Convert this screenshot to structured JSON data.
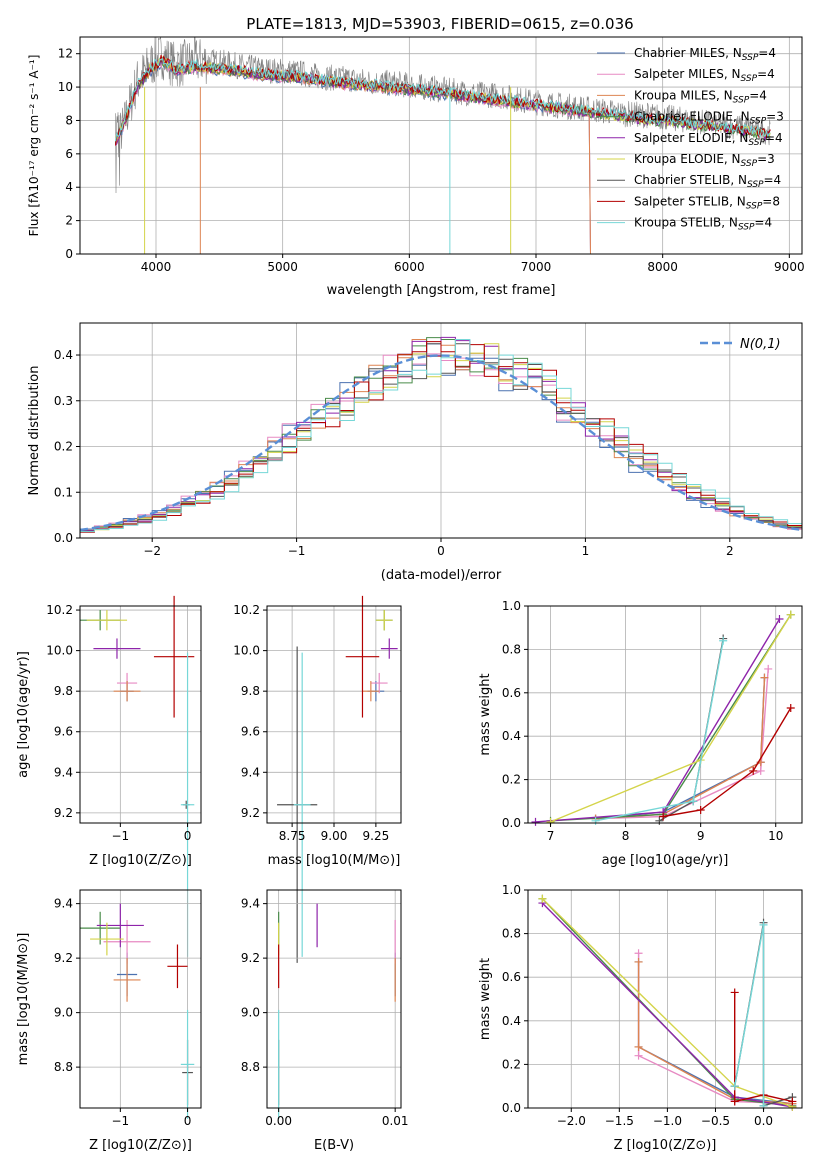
{
  "figure_title": "PLATE=1813, MJD=53903, FIBERID=0615, z=0.036",
  "series_colors": [
    "#4c72b0",
    "#e78ac3",
    "#dd8452",
    "#4a8c4a",
    "#8e24aa",
    "#d4d44a",
    "#555555",
    "#b30000",
    "#76d7d7"
  ],
  "legend_entries": [
    {
      "base": "Chabrier MILES, N",
      "sub": "SSP",
      "tail": "=4"
    },
    {
      "base": "Salpeter MILES, N",
      "sub": "SSP",
      "tail": "=4"
    },
    {
      "base": "Kroupa MILES, N",
      "sub": "SSP",
      "tail": "=4"
    },
    {
      "base": "Chabrier ELODIE, N",
      "sub": "SSP",
      "tail": "=3"
    },
    {
      "base": "Salpeter ELODIE, N",
      "sub": "SSP",
      "tail": "=4"
    },
    {
      "base": "Kroupa ELODIE, N",
      "sub": "SSP",
      "tail": "=3"
    },
    {
      "base": "Chabrier STELIB, N",
      "sub": "SSP",
      "tail": "=4"
    },
    {
      "base": "Salpeter STELIB, N",
      "sub": "SSP",
      "tail": "=8"
    },
    {
      "base": "Kroupa STELIB, N",
      "sub": "SSP",
      "tail": "=4"
    }
  ],
  "chart_data": [
    {
      "id": "spectrum",
      "type": "line",
      "xlabel": "wavelength [Angstrom, rest frame]",
      "ylabel": "Flux [fλ10⁻¹⁷ erg cm⁻² s⁻¹ A⁻¹]",
      "xlim": [
        3400,
        9100
      ],
      "ylim": [
        0,
        13
      ],
      "xticks": [
        4000,
        5000,
        6000,
        7000,
        8000,
        9000
      ],
      "yticks": [
        0,
        2,
        4,
        6,
        8,
        10,
        12
      ],
      "x": [
        3680,
        3750,
        3850,
        3950,
        4050,
        4150,
        4300,
        4500,
        4700,
        4900,
        5100,
        5300,
        5500,
        5700,
        5900,
        6100,
        6300,
        6500,
        6700,
        6900,
        7100,
        7300,
        7500,
        7700,
        7900,
        8100,
        8300,
        8500,
        8700,
        8850
      ],
      "data_y": [
        6.5,
        7.8,
        10.3,
        11.3,
        11.9,
        11.3,
        11.6,
        11.5,
        11.2,
        11.0,
        10.9,
        10.6,
        10.5,
        10.3,
        10.2,
        10.0,
        9.8,
        9.6,
        9.5,
        9.2,
        9.0,
        8.8,
        8.6,
        8.4,
        8.3,
        8.1,
        7.9,
        7.7,
        7.5,
        7.3
      ],
      "model_y": [
        6.7,
        7.9,
        10.0,
        11.0,
        11.6,
        11.0,
        11.2,
        11.1,
        10.9,
        10.7,
        10.6,
        10.4,
        10.2,
        10.1,
        9.9,
        9.8,
        9.6,
        9.4,
        9.2,
        9.0,
        8.8,
        8.6,
        8.4,
        8.2,
        8.0,
        7.9,
        7.7,
        7.5,
        7.3,
        7.1
      ]
    },
    {
      "id": "residuals",
      "type": "histogram",
      "xlabel": "(data-model)/error",
      "ylabel": "Normed distribution",
      "xlim": [
        -2.5,
        2.5
      ],
      "ylim": [
        0,
        0.47
      ],
      "xticks": [
        -2,
        -1,
        0,
        1,
        2
      ],
      "yticks": [
        0.0,
        0.1,
        0.2,
        0.3,
        0.4
      ],
      "legend": "N(0,1)",
      "bin_width": 0.1
    },
    {
      "id": "age_vs_Z",
      "type": "errorbar",
      "xlabel": "Z [log10(Z/Z⊙)]",
      "ylabel": "age [log10(age/yr)]",
      "xlim": [
        -1.6,
        0.2
      ],
      "ylim": [
        9.15,
        10.22
      ],
      "xticks": [
        -1,
        0
      ],
      "yticks": [
        9.2,
        9.4,
        9.6,
        9.8,
        10.0,
        10.2
      ],
      "points": [
        {
          "s": 0,
          "x": -0.9,
          "xerr": 0.1,
          "y": 9.8,
          "yerr": 0.05
        },
        {
          "s": 1,
          "x": -0.9,
          "xerr": 0.15,
          "y": 9.84,
          "yerr": 0.05
        },
        {
          "s": 2,
          "x": -0.9,
          "xerr": 0.2,
          "y": 9.8,
          "yerr": 0.05
        },
        {
          "s": 3,
          "x": -1.3,
          "xerr": 0.3,
          "y": 10.15,
          "yerr": 0.05
        },
        {
          "s": 4,
          "x": -1.05,
          "xerr": 0.35,
          "y": 10.01,
          "yerr": 0.05
        },
        {
          "s": 5,
          "x": -1.2,
          "xerr": 0.3,
          "y": 10.15,
          "yerr": 0.05
        },
        {
          "s": 6,
          "x": -0.02,
          "xerr": 0.05,
          "y": 9.24,
          "yerr": 0.02
        },
        {
          "s": 7,
          "x": -0.2,
          "xerr": 0.3,
          "y": 9.97,
          "yerr": 0.3
        },
        {
          "s": 8,
          "x": 0.0,
          "xerr": 0.1,
          "y": 9.24,
          "yerr": 0.75
        }
      ]
    },
    {
      "id": "age_vs_mass",
      "type": "errorbar",
      "xlabel": "mass [log10(M/M⊙)]",
      "ylabel": "",
      "xlim": [
        8.6,
        9.4
      ],
      "ylim": [
        9.15,
        10.22
      ],
      "xticks": [
        8.75,
        9.0,
        9.25
      ],
      "yticks": [
        9.2,
        9.4,
        9.6,
        9.8,
        10.0,
        10.2
      ],
      "points": [
        {
          "s": 0,
          "x": 9.25,
          "xerr": 0.05,
          "y": 9.8,
          "yerr": 0.05
        },
        {
          "s": 1,
          "x": 9.27,
          "xerr": 0.05,
          "y": 9.84,
          "yerr": 0.05
        },
        {
          "s": 2,
          "x": 9.22,
          "xerr": 0.05,
          "y": 9.8,
          "yerr": 0.05
        },
        {
          "s": 3,
          "x": 9.3,
          "xerr": 0.05,
          "y": 10.15,
          "yerr": 0.05
        },
        {
          "s": 4,
          "x": 9.33,
          "xerr": 0.05,
          "y": 10.01,
          "yerr": 0.05
        },
        {
          "s": 5,
          "x": 9.3,
          "xerr": 0.05,
          "y": 10.15,
          "yerr": 0.05
        },
        {
          "s": 6,
          "x": 8.78,
          "xerr": 0.12,
          "y": 9.24,
          "yerr": 0.78
        },
        {
          "s": 7,
          "x": 9.17,
          "xerr": 0.1,
          "y": 9.97,
          "yerr": 0.3
        },
        {
          "s": 8,
          "x": 8.81,
          "xerr": 0.05,
          "y": 9.24,
          "yerr": 0.75
        }
      ]
    },
    {
      "id": "weight_vs_age",
      "type": "line",
      "xlabel": "age [log10(age/yr)]",
      "ylabel": "mass weight",
      "xlim": [
        6.7,
        10.35
      ],
      "ylim": [
        0,
        1
      ],
      "xticks": [
        7,
        8,
        9,
        10
      ],
      "yticks": [
        0.0,
        0.2,
        0.4,
        0.6,
        0.8,
        1.0
      ],
      "series": [
        {
          "s": 0,
          "x": [
            7.6,
            8.5,
            9.8,
            9.85
          ],
          "y": [
            0.02,
            0.05,
            0.28,
            0.67
          ]
        },
        {
          "s": 1,
          "x": [
            7.6,
            8.5,
            9.8,
            9.9
          ],
          "y": [
            0.02,
            0.03,
            0.24,
            0.71
          ]
        },
        {
          "s": 2,
          "x": [
            7.6,
            8.5,
            9.8,
            9.85
          ],
          "y": [
            0.02,
            0.04,
            0.28,
            0.67
          ]
        },
        {
          "s": 3,
          "x": [
            7.0,
            8.5,
            10.2
          ],
          "y": [
            0.01,
            0.04,
            0.96
          ]
        },
        {
          "s": 4,
          "x": [
            6.8,
            8.5,
            10.05
          ],
          "y": [
            0.005,
            0.05,
            0.94
          ]
        },
        {
          "s": 5,
          "x": [
            7.0,
            9.0,
            10.2
          ],
          "y": [
            0.005,
            0.29,
            0.96
          ]
        },
        {
          "s": 6,
          "x": [
            8.45,
            8.9,
            9.3
          ],
          "y": [
            0.01,
            0.1,
            0.85
          ]
        },
        {
          "s": 7,
          "x": [
            8.5,
            9.0,
            9.7,
            10.2
          ],
          "y": [
            0.03,
            0.06,
            0.24,
            0.53
          ]
        },
        {
          "s": 8,
          "x": [
            7.6,
            8.9,
            9.3
          ],
          "y": [
            0.01,
            0.1,
            0.84
          ]
        }
      ]
    },
    {
      "id": "mass_vs_Z",
      "type": "errorbar",
      "xlabel": "Z [log10(Z/Z⊙)]",
      "ylabel": "mass [log10(M/M⊙)]",
      "xlim": [
        -1.6,
        0.2
      ],
      "ylim": [
        8.65,
        9.45
      ],
      "xticks": [
        -1,
        0
      ],
      "yticks": [
        8.8,
        9.0,
        9.2,
        9.4
      ],
      "points": [
        {
          "s": 0,
          "x": -0.9,
          "xerr": 0.15,
          "y": 9.14,
          "yerr": 0.08
        },
        {
          "s": 1,
          "x": -0.9,
          "xerr": 0.35,
          "y": 9.26,
          "yerr": 0.08
        },
        {
          "s": 2,
          "x": -0.9,
          "xerr": 0.2,
          "y": 9.12,
          "yerr": 0.08
        },
        {
          "s": 3,
          "x": -1.3,
          "xerr": 0.3,
          "y": 9.31,
          "yerr": 0.06
        },
        {
          "s": 4,
          "x": -1.0,
          "xerr": 0.35,
          "y": 9.32,
          "yerr": 0.08
        },
        {
          "s": 5,
          "x": -1.2,
          "xerr": 0.25,
          "y": 9.27,
          "yerr": 0.06
        },
        {
          "s": 6,
          "x": 0.0,
          "xerr": 0.08,
          "y": 8.78,
          "yerr": 0.12
        },
        {
          "s": 7,
          "x": -0.15,
          "xerr": 0.15,
          "y": 9.17,
          "yerr": 0.08
        },
        {
          "s": 8,
          "x": 0.0,
          "xerr": 0.1,
          "y": 8.81,
          "yerr": 0.2
        }
      ]
    },
    {
      "id": "mass_vs_ebv",
      "type": "errorbar",
      "xlabel": "E(B-V)",
      "ylabel": "",
      "xlim": [
        -0.001,
        0.0105
      ],
      "ylim": [
        8.65,
        9.45
      ],
      "xticks": [
        0.0,
        0.01
      ],
      "yticks": [
        8.8,
        9.0,
        9.2,
        9.4
      ],
      "points": [
        {
          "s": 0,
          "x": 0.01,
          "y": 9.14,
          "yerr": 0.08
        },
        {
          "s": 1,
          "x": 0.01,
          "y": 9.26,
          "yerr": 0.08
        },
        {
          "s": 2,
          "x": 0.01,
          "y": 9.12,
          "yerr": 0.08
        },
        {
          "s": 3,
          "x": 0.0,
          "y": 9.31,
          "yerr": 0.06
        },
        {
          "s": 4,
          "x": 0.0033,
          "y": 9.32,
          "yerr": 0.08
        },
        {
          "s": 5,
          "x": 0.0,
          "y": 9.27,
          "yerr": 0.06
        },
        {
          "s": 6,
          "x": 0.0,
          "y": 8.78,
          "yerr": 0.12
        },
        {
          "s": 7,
          "x": 0.0,
          "y": 9.17,
          "yerr": 0.08
        },
        {
          "s": 8,
          "x": 0.0,
          "y": 8.81,
          "yerr": 0.2
        }
      ]
    },
    {
      "id": "weight_vs_Z",
      "type": "line",
      "xlabel": "Z [log10(Z/Z⊙)]",
      "ylabel": "mass weight",
      "xlim": [
        -2.45,
        0.4
      ],
      "ylim": [
        0,
        1
      ],
      "xticks": [
        -2.0,
        -1.5,
        -1.0,
        -0.5,
        0.0
      ],
      "yticks": [
        0.0,
        0.2,
        0.4,
        0.6,
        0.8,
        1.0
      ],
      "series": [
        {
          "s": 0,
          "x": [
            -1.3,
            -1.3,
            -0.3,
            0.3
          ],
          "y": [
            0.67,
            0.28,
            0.05,
            0.02
          ]
        },
        {
          "s": 1,
          "x": [
            -1.3,
            -1.3,
            -0.3,
            0.3
          ],
          "y": [
            0.71,
            0.24,
            0.03,
            0.02
          ]
        },
        {
          "s": 2,
          "x": [
            -1.3,
            -1.3,
            -0.3,
            0.3
          ],
          "y": [
            0.67,
            0.28,
            0.04,
            0.02
          ]
        },
        {
          "s": 3,
          "x": [
            -2.3,
            -0.3,
            0.3
          ],
          "y": [
            0.96,
            0.04,
            0.01
          ]
        },
        {
          "s": 4,
          "x": [
            -2.3,
            -0.3,
            0.3
          ],
          "y": [
            0.94,
            0.05,
            0.005
          ]
        },
        {
          "s": 5,
          "x": [
            -2.3,
            -0.3,
            0.3
          ],
          "y": [
            0.96,
            0.1,
            0.005
          ]
        },
        {
          "s": 6,
          "x": [
            -0.3,
            0.0,
            0.0,
            0.3
          ],
          "y": [
            0.1,
            0.85,
            0.01,
            0.05
          ]
        },
        {
          "s": 7,
          "x": [
            -0.3,
            -0.3,
            0.0,
            0.3
          ],
          "y": [
            0.53,
            0.03,
            0.06,
            0.03
          ]
        },
        {
          "s": 8,
          "x": [
            -0.3,
            0.0,
            0.0
          ],
          "y": [
            0.1,
            0.84,
            0.01
          ]
        }
      ]
    }
  ]
}
